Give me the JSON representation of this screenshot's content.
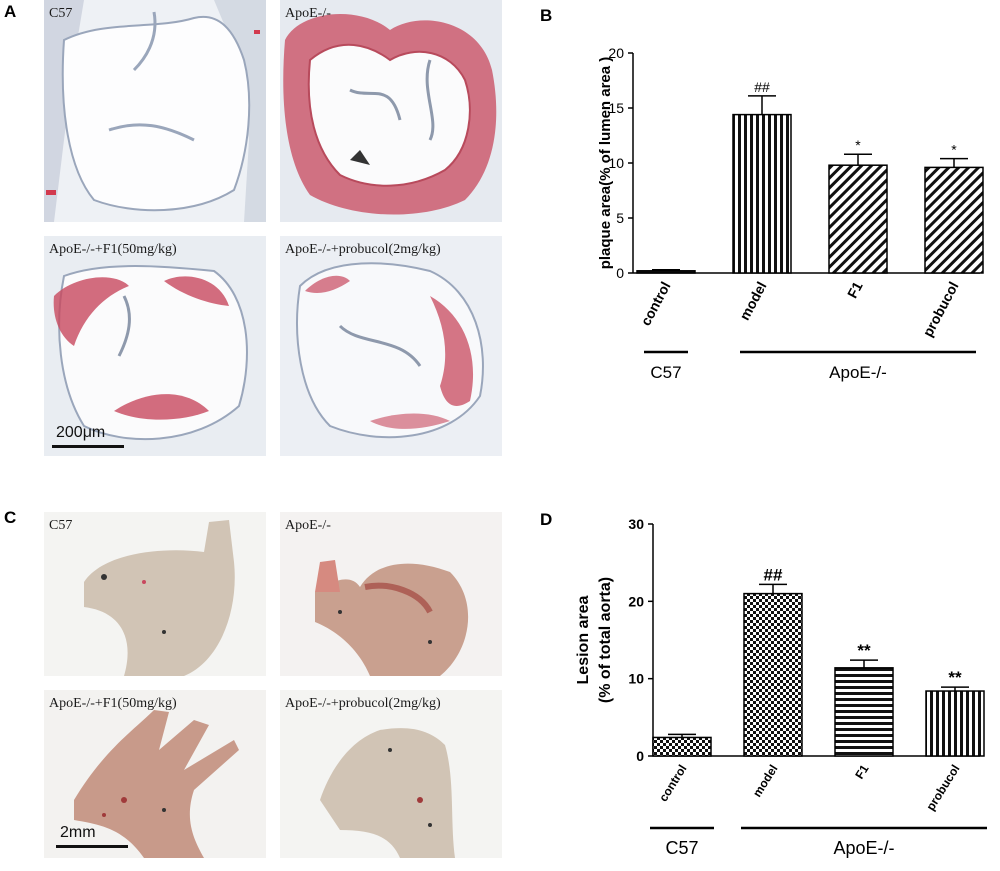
{
  "panels": {
    "A": "A",
    "B": "B",
    "C": "C",
    "D": "D"
  },
  "histology": {
    "captions": [
      "C57",
      "ApoE-/-",
      "ApoE-/-+F1(50mg/kg)",
      "ApoE-/-+probucol(2mg/kg)"
    ],
    "scalebar": "200μm"
  },
  "enface": {
    "captions": [
      "C57",
      "ApoE-/-",
      "ApoE-/-+F1(50mg/kg)",
      "ApoE-/-+probucol(2mg/kg)"
    ],
    "scalebar": "2mm"
  },
  "colors": {
    "stain": "#c8485e",
    "tissue": "#a9b4c6",
    "aorta": "#cdbfae",
    "bar": "#000000"
  },
  "chart_data": [
    {
      "panel": "B",
      "type": "bar",
      "categories": [
        "control",
        "model",
        "F1",
        "probucol"
      ],
      "values": [
        0.2,
        14.4,
        9.8,
        9.6
      ],
      "errors": [
        0.1,
        1.7,
        1.0,
        0.8
      ],
      "annotations": [
        "",
        "##",
        "*",
        "*"
      ],
      "patterns": [
        "solid",
        "vertical-stripes",
        "diagonal-stripes",
        "diagonal-stripes"
      ],
      "ylabel": "plaque area(% of lumen area )",
      "ylim": [
        0,
        20
      ],
      "yticks": [
        0,
        5,
        10,
        15,
        20
      ],
      "groups": [
        {
          "label": "C57",
          "members": [
            "control"
          ]
        },
        {
          "label": "ApoE-/-",
          "members": [
            "model",
            "F1",
            "probucol"
          ]
        }
      ]
    },
    {
      "panel": "D",
      "type": "bar",
      "categories": [
        "control",
        "model",
        "F1",
        "probucol"
      ],
      "values": [
        2.4,
        21.0,
        11.4,
        8.4
      ],
      "errors": [
        0.4,
        1.2,
        1.0,
        0.5
      ],
      "annotations": [
        "",
        "##",
        "**",
        "**"
      ],
      "patterns": [
        "checker",
        "checker",
        "horizontal-stripes",
        "vertical-stripes"
      ],
      "ylabel_lines": [
        "Lesion area",
        "(% of total aorta)"
      ],
      "ylim": [
        0,
        30
      ],
      "yticks": [
        0,
        10,
        20,
        30
      ],
      "groups": [
        {
          "label": "C57",
          "members": [
            "control"
          ]
        },
        {
          "label": "ApoE-/-",
          "members": [
            "model",
            "F1",
            "probucol"
          ]
        }
      ]
    }
  ]
}
